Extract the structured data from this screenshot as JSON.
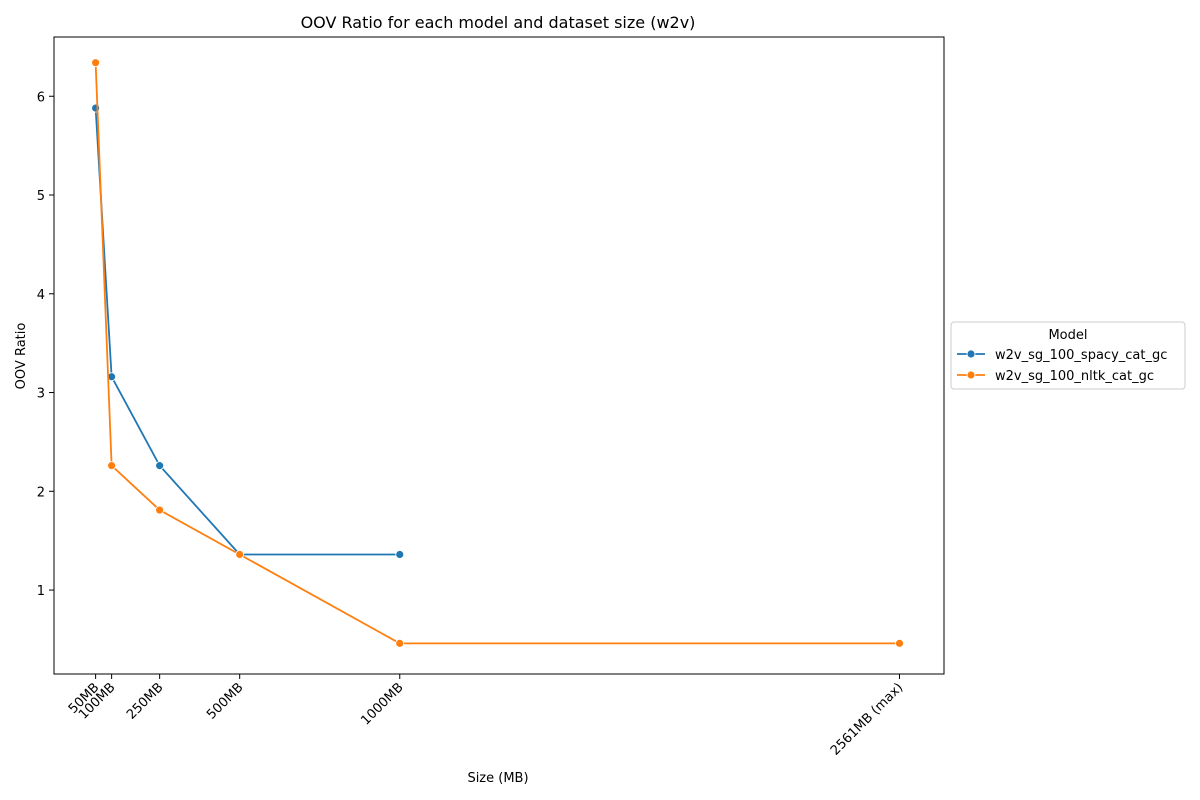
{
  "chart_data": {
    "type": "line",
    "title": "OOV Ratio for each model and dataset size (w2v)",
    "xlabel": "Size (MB)",
    "ylabel": "OOV Ratio",
    "xlim": [
      -80,
      2700
    ],
    "ylim": [
      0.15,
      6.6
    ],
    "x_ticks": [
      {
        "value": 50,
        "label": "50MB"
      },
      {
        "value": 100,
        "label": "100MB"
      },
      {
        "value": 250,
        "label": "250MB"
      },
      {
        "value": 500,
        "label": "500MB"
      },
      {
        "value": 1000,
        "label": "1000MB"
      },
      {
        "value": 2561,
        "label": "2561MB (max)"
      }
    ],
    "y_ticks": [
      1,
      2,
      3,
      4,
      5,
      6
    ],
    "grid": false,
    "legend": {
      "title": "Model",
      "placement": "center-right-outside"
    },
    "series": [
      {
        "name": "w2v_sg_100_spacy_cat_gc",
        "color": "#1f77b4",
        "x": [
          50,
          100,
          250,
          500,
          1000
        ],
        "y": [
          5.88,
          3.16,
          2.26,
          1.36,
          1.36
        ]
      },
      {
        "name": "w2v_sg_100_nltk_cat_gc",
        "color": "#ff7f0e",
        "x": [
          50,
          100,
          250,
          500,
          1000,
          2561
        ],
        "y": [
          6.34,
          2.26,
          1.81,
          1.36,
          0.46,
          0.46
        ]
      }
    ]
  }
}
